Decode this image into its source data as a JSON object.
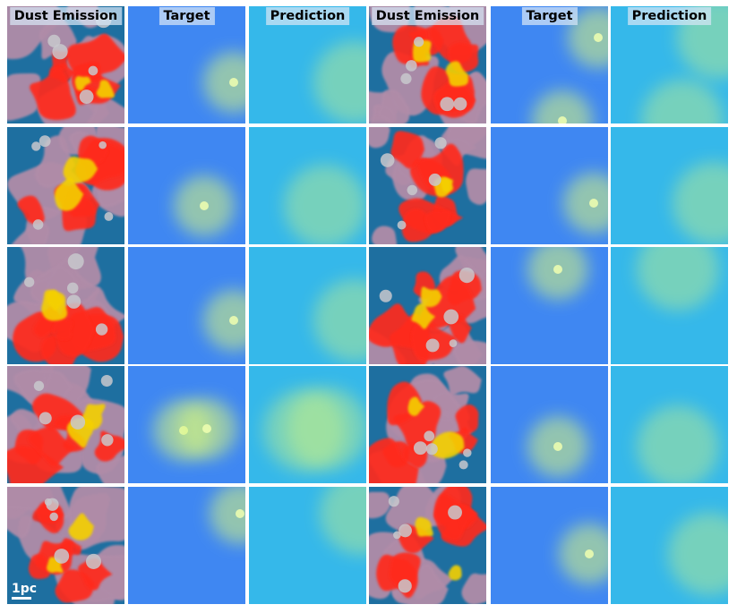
{
  "column_headers": [
    {
      "label": "Dust Emission",
      "kind": "dust"
    },
    {
      "label": "Target",
      "kind": "target"
    },
    {
      "label": "Prediction",
      "kind": "prediction"
    },
    {
      "label": "Dust Emission",
      "kind": "dust"
    },
    {
      "label": "Target",
      "kind": "target"
    },
    {
      "label": "Prediction",
      "kind": "prediction"
    }
  ],
  "scale_bar": {
    "label": "1pc"
  },
  "colors": {
    "dust_base": "#1e6fa0",
    "dust_lilac": "#b08ca8",
    "dust_red": "#ff2a1c",
    "dust_yellow": "#f4d000",
    "target_base": "#3f87f2",
    "prediction_base": "#35b8ea",
    "glow": "#d8f77a"
  }
}
